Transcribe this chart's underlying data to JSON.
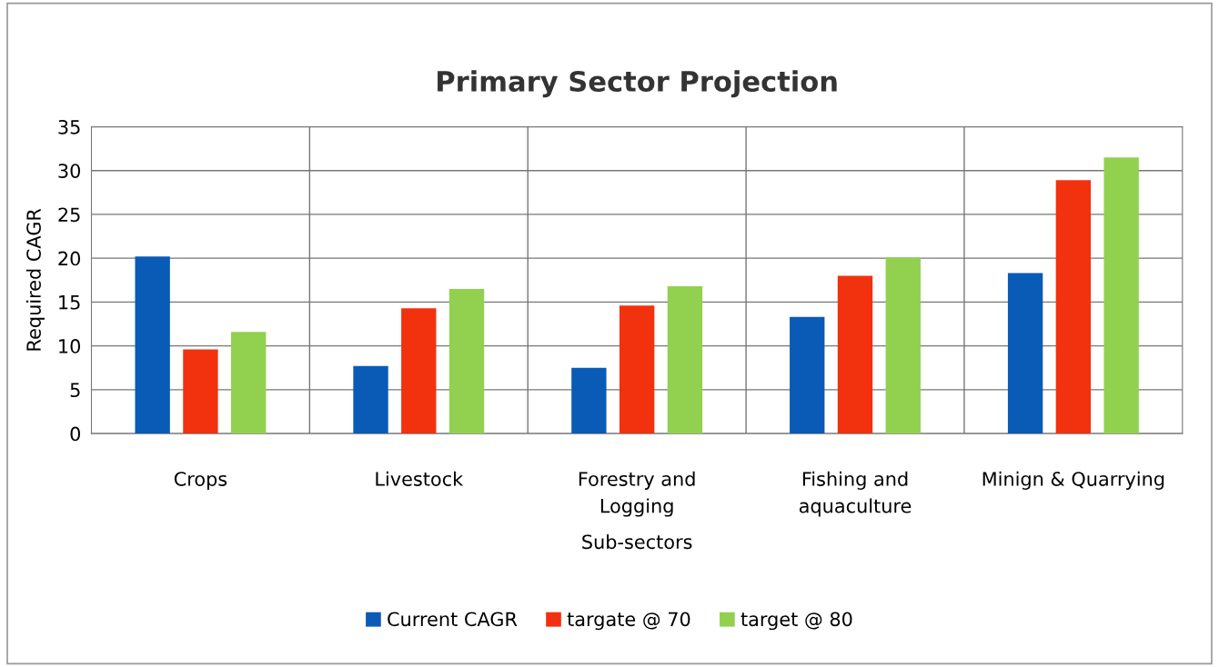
{
  "chart_data": {
    "type": "bar",
    "title": "Primary Sector Projection",
    "xlabel": "Sub-sectors",
    "ylabel": "Required CAGR",
    "categories": [
      "Crops",
      "Livestock",
      "Forestry and\nLogging",
      "Fishing and\naquaculture",
      "Minign & Quarrying"
    ],
    "series": [
      {
        "name": "Current CAGR",
        "color": "#0a5bb5",
        "values": [
          20.2,
          7.7,
          7.5,
          13.3,
          18.3
        ]
      },
      {
        "name": "targate @ 70",
        "color": "#f2310f",
        "values": [
          9.6,
          14.3,
          14.6,
          18.0,
          28.9
        ]
      },
      {
        "name": "target @ 80",
        "color": "#92d050",
        "values": [
          11.6,
          16.5,
          16.8,
          20.1,
          31.5
        ]
      }
    ],
    "ylim": [
      0,
      35
    ],
    "yticks": [
      0,
      5,
      10,
      15,
      20,
      25,
      30,
      35
    ],
    "grid": true,
    "legend": "bottom"
  }
}
